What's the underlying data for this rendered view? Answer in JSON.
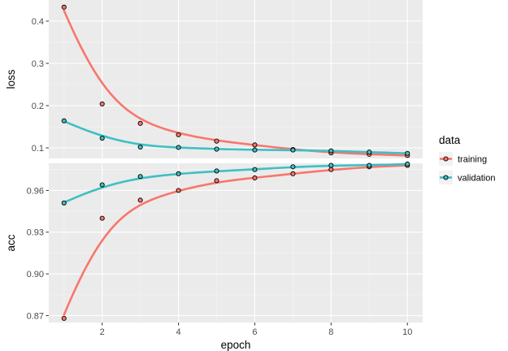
{
  "chart_data": {
    "type": "line",
    "x": [
      1,
      2,
      3,
      4,
      5,
      6,
      7,
      8,
      9,
      10
    ],
    "xlabel": "epoch",
    "xticks": [
      "2",
      "4",
      "6",
      "8",
      "10"
    ],
    "xlim": [
      0.6,
      10.4
    ],
    "grid": true,
    "legend": {
      "title": "data",
      "position": "right",
      "entries": [
        "training",
        "validation"
      ]
    },
    "colors": {
      "training": "#f8766d",
      "validation": "#3fbfc4"
    },
    "panels": [
      {
        "ylabel": "loss",
        "ylim": [
          0.075,
          0.45
        ],
        "yticks": [
          "0.1",
          "0.2",
          "0.3",
          "0.4"
        ],
        "series": [
          {
            "name": "training",
            "values": [
              0.433,
              0.204,
              0.158,
              0.131,
              0.116,
              0.107,
              0.096,
              0.088,
              0.085,
              0.082
            ]
          },
          {
            "name": "validation",
            "values": [
              0.164,
              0.123,
              0.102,
              0.101,
              0.097,
              0.095,
              0.095,
              0.093,
              0.09,
              0.087
            ]
          }
        ]
      },
      {
        "ylabel": "acc",
        "ylim": [
          0.865,
          0.9795
        ],
        "yticks": [
          "0.87",
          "0.90",
          "0.93",
          "0.96"
        ],
        "series": [
          {
            "name": "training",
            "values": [
              0.868,
              0.94,
              0.953,
              0.96,
              0.967,
              0.969,
              0.972,
              0.975,
              0.977,
              0.978
            ]
          },
          {
            "name": "validation",
            "values": [
              0.951,
              0.964,
              0.97,
              0.972,
              0.974,
              0.975,
              0.977,
              0.978,
              0.978,
              0.979
            ]
          }
        ]
      }
    ]
  }
}
